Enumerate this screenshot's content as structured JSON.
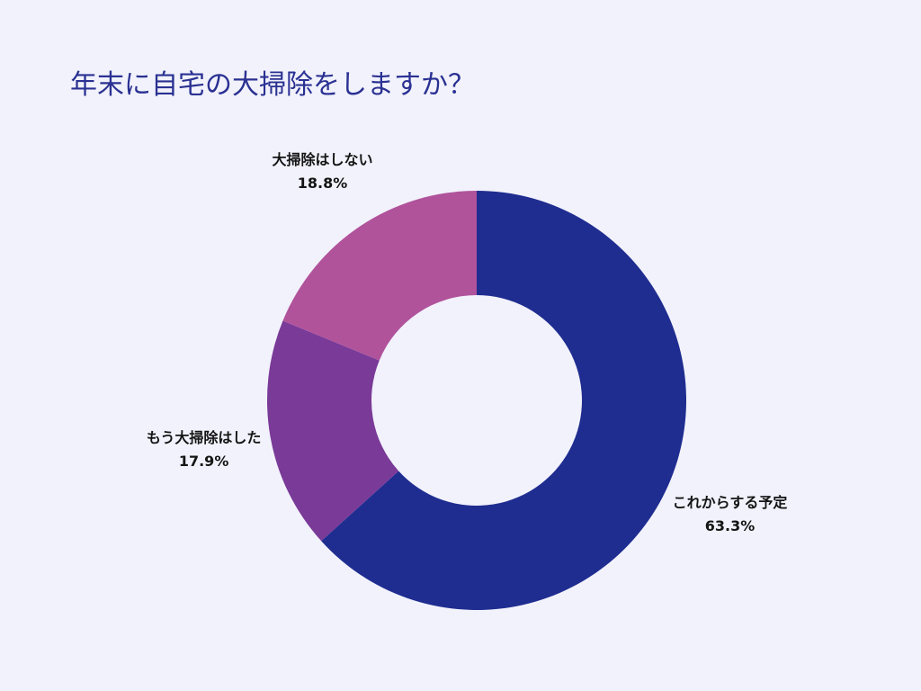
{
  "theme": {
    "background": "#f2f2fc",
    "title_color": "#2a3192"
  },
  "chart_data": {
    "type": "pie",
    "donut": true,
    "title": "年末に自宅の大掃除をしますか？",
    "categories": [
      "これからする予定",
      "もう大掃除はした",
      "大掃除はしない"
    ],
    "values": [
      63.3,
      17.9,
      18.8
    ],
    "unit": "%",
    "colors": [
      "#1f2d90",
      "#7a3a98",
      "#b0539b"
    ]
  }
}
